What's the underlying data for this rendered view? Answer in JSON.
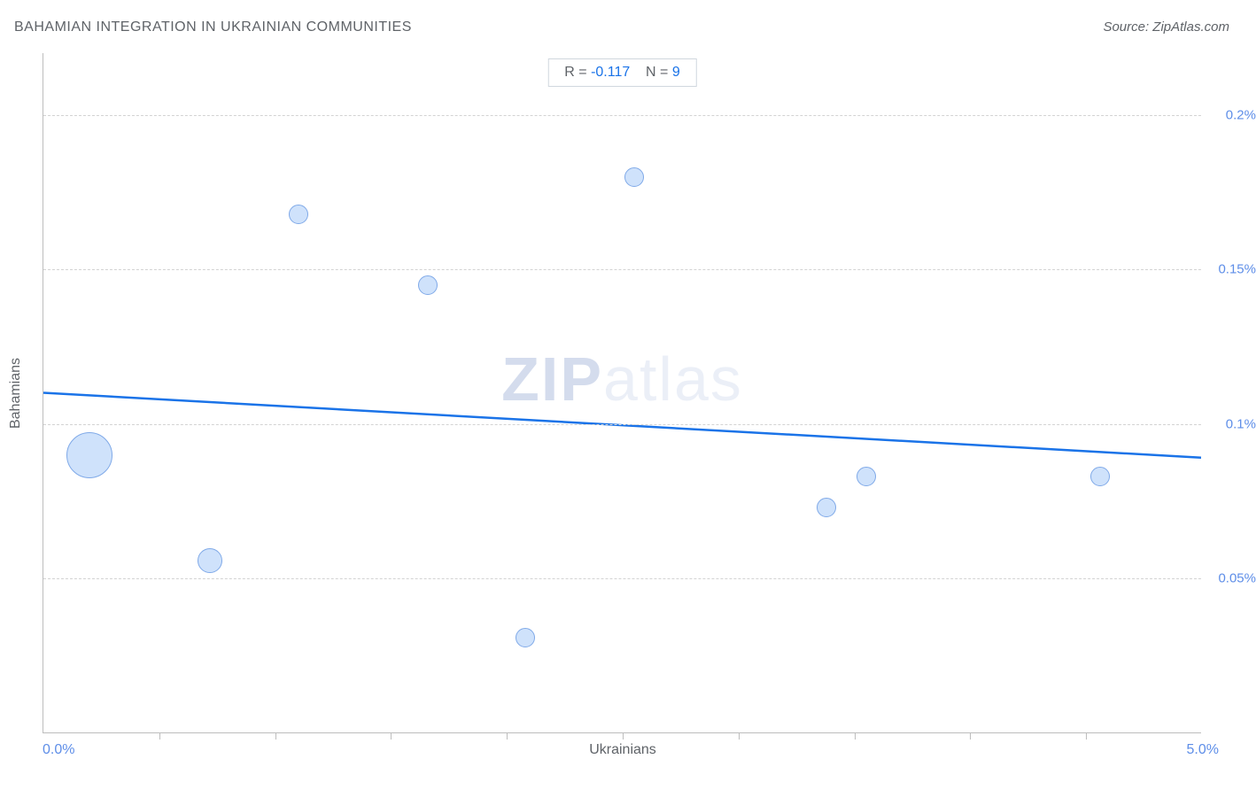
{
  "title": "BAHAMIAN INTEGRATION IN UKRAINIAN COMMUNITIES",
  "source": "Source: ZipAtlas.com",
  "watermark_zip": "ZIP",
  "watermark_atlas": "atlas",
  "stats": {
    "r_label": "R =",
    "r_value": "-0.117",
    "n_label": "N =",
    "n_value": "9"
  },
  "chart": {
    "type": "scatter",
    "x_axis": {
      "title": "Ukrainians",
      "min_label": "0.0%",
      "max_label": "5.0%",
      "min": 0.0,
      "max": 5.0,
      "ticks": [
        0.5,
        1.0,
        1.5,
        2.0,
        2.5,
        3.0,
        3.5,
        4.0,
        4.5
      ]
    },
    "y_axis": {
      "title": "Bahamians",
      "min": 0.0,
      "max": 0.22,
      "gridlines": [
        {
          "value": 0.05,
          "label": "0.05%"
        },
        {
          "value": 0.1,
          "label": "0.1%"
        },
        {
          "value": 0.15,
          "label": "0.15%"
        },
        {
          "value": 0.2,
          "label": "0.2%"
        }
      ]
    },
    "bubbles": [
      {
        "x": 0.2,
        "y": 0.09,
        "r": 26
      },
      {
        "x": 0.72,
        "y": 0.056,
        "r": 14
      },
      {
        "x": 1.1,
        "y": 0.168,
        "r": 11
      },
      {
        "x": 1.66,
        "y": 0.145,
        "r": 11
      },
      {
        "x": 2.08,
        "y": 0.031,
        "r": 11
      },
      {
        "x": 2.55,
        "y": 0.18,
        "r": 11
      },
      {
        "x": 3.38,
        "y": 0.073,
        "r": 11
      },
      {
        "x": 3.55,
        "y": 0.083,
        "r": 11
      },
      {
        "x": 4.56,
        "y": 0.083,
        "r": 11
      }
    ],
    "trendline": {
      "y_at_xmin": 0.11,
      "y_at_xmax": 0.089,
      "color": "#1a73e8",
      "width": 2.5
    },
    "bubble_fill": "#cfe2fb",
    "bubble_stroke": "#7fa9e8",
    "grid_color": "#d3d3d3",
    "axis_color": "#bdbdbd",
    "background": "#ffffff",
    "tick_label_color": "#5e8ee8",
    "title_color": "#5f6368"
  }
}
